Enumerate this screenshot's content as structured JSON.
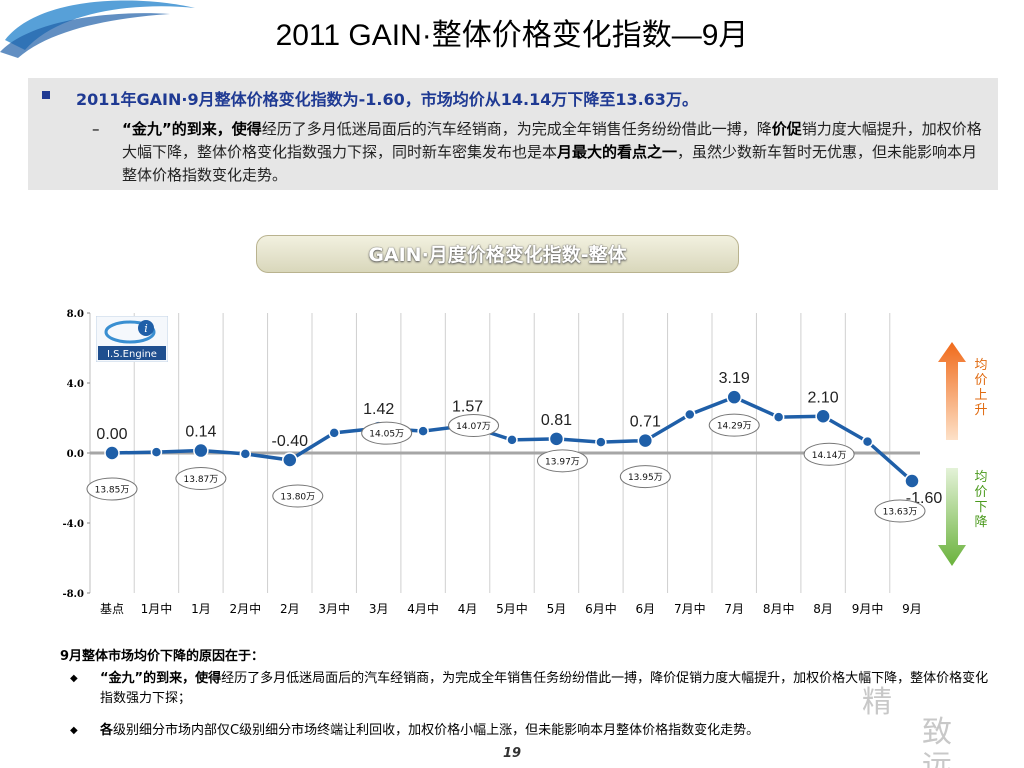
{
  "title": "2011 GAIN·整体价格变化指数—9月",
  "summary": {
    "headline": "2011年GAIN·9月整体价格变化指数为-1.60，市场均价从14.14万下降至13.63万。",
    "body_bold1": "“金九”的到来，使得",
    "body_text1": "经历了多月低迷局面后的汽车经销商，为完成全年销售任务纷纷借此一搏，降",
    "body_bold2": "价促",
    "body_text2": "销力度大幅提升，加权价格大幅下降，整体价格变化指数强力下探，同时新车密集发布也是本",
    "body_bold3": "月最大的看点之一",
    "body_text3": "，虽然少数新车暂时无优惠，但未能影响本月整体价格指数变化走势。"
  },
  "chart_pill_title": "GAIN·月度价格变化指数-整体",
  "logo_text": "I.S.Engine",
  "side_labels": {
    "up": "均价上升",
    "down": "均价下降"
  },
  "colors": {
    "line": "#1f5fa8",
    "zero_line": "#a6a6a6",
    "up_arrow": "#f08a3c",
    "down_arrow": "#7fbf4f"
  },
  "chart_data": {
    "type": "line",
    "categories": [
      "基点",
      "1月中",
      "1月",
      "2月中",
      "2月",
      "3月中",
      "3月",
      "4月中",
      "4月",
      "5月中",
      "5月",
      "6月中",
      "6月",
      "7月中",
      "7月",
      "8月中",
      "8月",
      "9月中",
      "9月"
    ],
    "series": [
      {
        "values": [
          0.0,
          0.05,
          0.14,
          -0.05,
          -0.4,
          1.15,
          1.42,
          1.25,
          1.57,
          0.75,
          0.81,
          0.62,
          0.71,
          2.2,
          3.19,
          2.05,
          2.1,
          0.65,
          -1.6
        ]
      }
    ],
    "yticks": [
      "8.0",
      "4.0",
      "0.0",
      "-4.0",
      "-8.0"
    ],
    "ylim": [
      -8,
      8
    ],
    "grid": "vertical",
    "point_labels": [
      {
        "index": 0,
        "text": "0.00"
      },
      {
        "index": 2,
        "text": "0.14"
      },
      {
        "index": 4,
        "text": "-0.40"
      },
      {
        "index": 6,
        "text": "1.42"
      },
      {
        "index": 8,
        "text": "1.57"
      },
      {
        "index": 10,
        "text": "0.81"
      },
      {
        "index": 12,
        "text": "0.71"
      },
      {
        "index": 14,
        "text": "3.19"
      },
      {
        "index": 16,
        "text": "2.10"
      },
      {
        "index": 18,
        "text": "-1.60"
      }
    ],
    "price_callouts": [
      {
        "index": 0,
        "text": "13.85万"
      },
      {
        "index": 2,
        "text": "13.87万"
      },
      {
        "index": 4,
        "text": "13.80万"
      },
      {
        "index": 6,
        "text": "14.05万"
      },
      {
        "index": 8,
        "text": "14.07万"
      },
      {
        "index": 10,
        "text": "13.97万"
      },
      {
        "index": 12,
        "text": "13.95万"
      },
      {
        "index": 14,
        "text": "14.29万"
      },
      {
        "index": 16,
        "text": "14.14万"
      },
      {
        "index": 18,
        "text": "13.63万"
      }
    ]
  },
  "reasons": {
    "title": "9月整体市场均价下降的原因在于：",
    "item1_bold": "“金九”的到来，使得",
    "item1_text": "经历了多月低迷局面后的汽车经销商，为完成全年销售任务纷纷借此一搏，降价促销力度大幅提升，加权价格大幅下降，整体价格变化指数强力下探；",
    "item2_bold": "各",
    "item2_text": "级别细分市场内部仅C级别细分市场终端让利回收，加权价格小幅上涨，但未能影响本月整体价格指数变化走势。"
  },
  "page_number": "19",
  "watermark": {
    "char1": "精",
    "char2": "致远"
  }
}
